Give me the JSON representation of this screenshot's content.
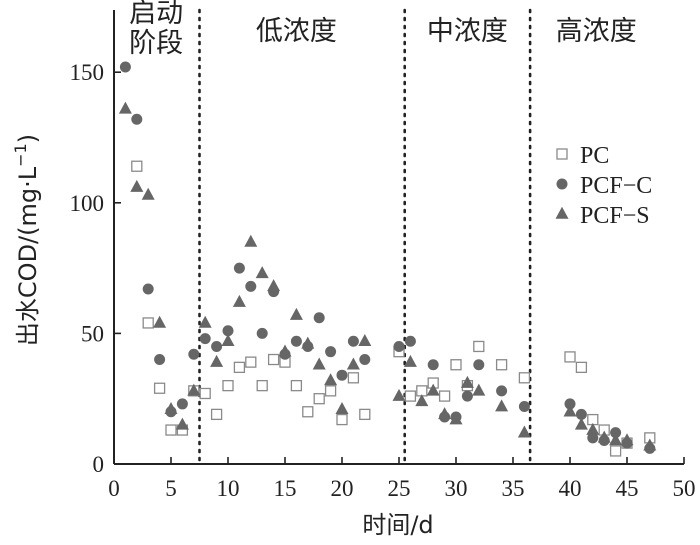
{
  "chart_data": {
    "type": "scatter",
    "xlabel": "时间/d",
    "ylabel_main": "出水COD/(mg·L",
    "ylabel_sup": "−1",
    "ylabel_close": ")",
    "xlim": [
      0,
      50
    ],
    "ylim": [
      0,
      170
    ],
    "x_ticks": [
      0,
      5,
      10,
      15,
      20,
      25,
      30,
      35,
      40,
      45,
      50
    ],
    "x_tick_labels": [
      "0",
      "5",
      "10",
      "15",
      "20",
      "25",
      "30",
      "35",
      "40",
      "45",
      "50"
    ],
    "y_ticks": [
      0,
      50,
      100,
      150
    ],
    "y_tick_labels": [
      "0",
      "50",
      "100",
      "150"
    ],
    "dividers_x": [
      7.5,
      25.5,
      36.5
    ],
    "stages": [
      {
        "lines": [
          "启动",
          "阶段"
        ],
        "x_center": 3.7
      },
      {
        "lines": [
          "低浓度"
        ],
        "x_center": 16.0
      },
      {
        "lines": [
          "中浓度"
        ],
        "x_center": 31.0
      },
      {
        "lines": [
          "高浓度"
        ],
        "x_center": 42.3
      }
    ],
    "series": [
      {
        "name": "PC",
        "marker": "square-open",
        "color": "#8a8a8a",
        "points": [
          [
            2,
            114
          ],
          [
            3,
            54
          ],
          [
            4,
            29
          ],
          [
            5,
            13
          ],
          [
            6,
            13
          ],
          [
            7,
            28
          ],
          [
            8,
            27
          ],
          [
            9,
            19
          ],
          [
            10,
            30
          ],
          [
            11,
            37
          ],
          [
            12,
            39
          ],
          [
            13,
            30
          ],
          [
            14,
            40
          ],
          [
            15,
            39
          ],
          [
            16,
            30
          ],
          [
            17,
            20
          ],
          [
            18,
            25
          ],
          [
            19,
            28
          ],
          [
            20,
            17
          ],
          [
            21,
            33
          ],
          [
            22,
            19
          ],
          [
            25,
            43
          ],
          [
            26,
            26
          ],
          [
            27,
            28
          ],
          [
            28,
            31
          ],
          [
            29,
            26
          ],
          [
            30,
            38
          ],
          [
            31,
            30
          ],
          [
            32,
            45
          ],
          [
            34,
            38
          ],
          [
            36,
            33
          ],
          [
            40,
            41
          ],
          [
            41,
            37
          ],
          [
            42,
            17
          ],
          [
            43,
            13
          ],
          [
            44,
            5
          ],
          [
            45,
            8
          ],
          [
            47,
            10
          ]
        ]
      },
      {
        "name": "PCF−C",
        "marker": "circle",
        "color": "#666666",
        "points": [
          [
            1,
            152
          ],
          [
            2,
            132
          ],
          [
            3,
            67
          ],
          [
            4,
            40
          ],
          [
            5,
            20
          ],
          [
            6,
            23
          ],
          [
            7,
            42
          ],
          [
            8,
            48
          ],
          [
            9,
            45
          ],
          [
            10,
            51
          ],
          [
            11,
            75
          ],
          [
            12,
            68
          ],
          [
            13,
            50
          ],
          [
            14,
            66
          ],
          [
            15,
            42
          ],
          [
            16,
            47
          ],
          [
            17,
            45
          ],
          [
            18,
            56
          ],
          [
            19,
            43
          ],
          [
            20,
            34
          ],
          [
            21,
            47
          ],
          [
            22,
            40
          ],
          [
            25,
            45
          ],
          [
            26,
            47
          ],
          [
            28,
            38
          ],
          [
            29,
            18
          ],
          [
            30,
            18
          ],
          [
            31,
            26
          ],
          [
            32,
            38
          ],
          [
            34,
            28
          ],
          [
            36,
            22
          ],
          [
            40,
            23
          ],
          [
            41,
            19
          ],
          [
            42,
            10
          ],
          [
            43,
            9
          ],
          [
            44,
            12
          ],
          [
            45,
            8
          ],
          [
            47,
            6
          ]
        ]
      },
      {
        "name": "PCF−S",
        "marker": "triangle",
        "color": "#666666",
        "points": [
          [
            1,
            136
          ],
          [
            2,
            106
          ],
          [
            3,
            103
          ],
          [
            4,
            54
          ],
          [
            5,
            21
          ],
          [
            6,
            15
          ],
          [
            7,
            28
          ],
          [
            8,
            54
          ],
          [
            9,
            39
          ],
          [
            10,
            47
          ],
          [
            11,
            62
          ],
          [
            12,
            85
          ],
          [
            13,
            73
          ],
          [
            14,
            68
          ],
          [
            15,
            43
          ],
          [
            16,
            57
          ],
          [
            17,
            46
          ],
          [
            18,
            38
          ],
          [
            19,
            32
          ],
          [
            20,
            21
          ],
          [
            21,
            38
          ],
          [
            22,
            47
          ],
          [
            25,
            26
          ],
          [
            26,
            39
          ],
          [
            27,
            24
          ],
          [
            28,
            28
          ],
          [
            29,
            19
          ],
          [
            30,
            17
          ],
          [
            31,
            31
          ],
          [
            32,
            28
          ],
          [
            34,
            22
          ],
          [
            36,
            12
          ],
          [
            40,
            20
          ],
          [
            41,
            15
          ],
          [
            42,
            13
          ],
          [
            43,
            10
          ],
          [
            44,
            9
          ],
          [
            45,
            9
          ],
          [
            47,
            7
          ]
        ]
      }
    ],
    "legend_position": "right"
  }
}
